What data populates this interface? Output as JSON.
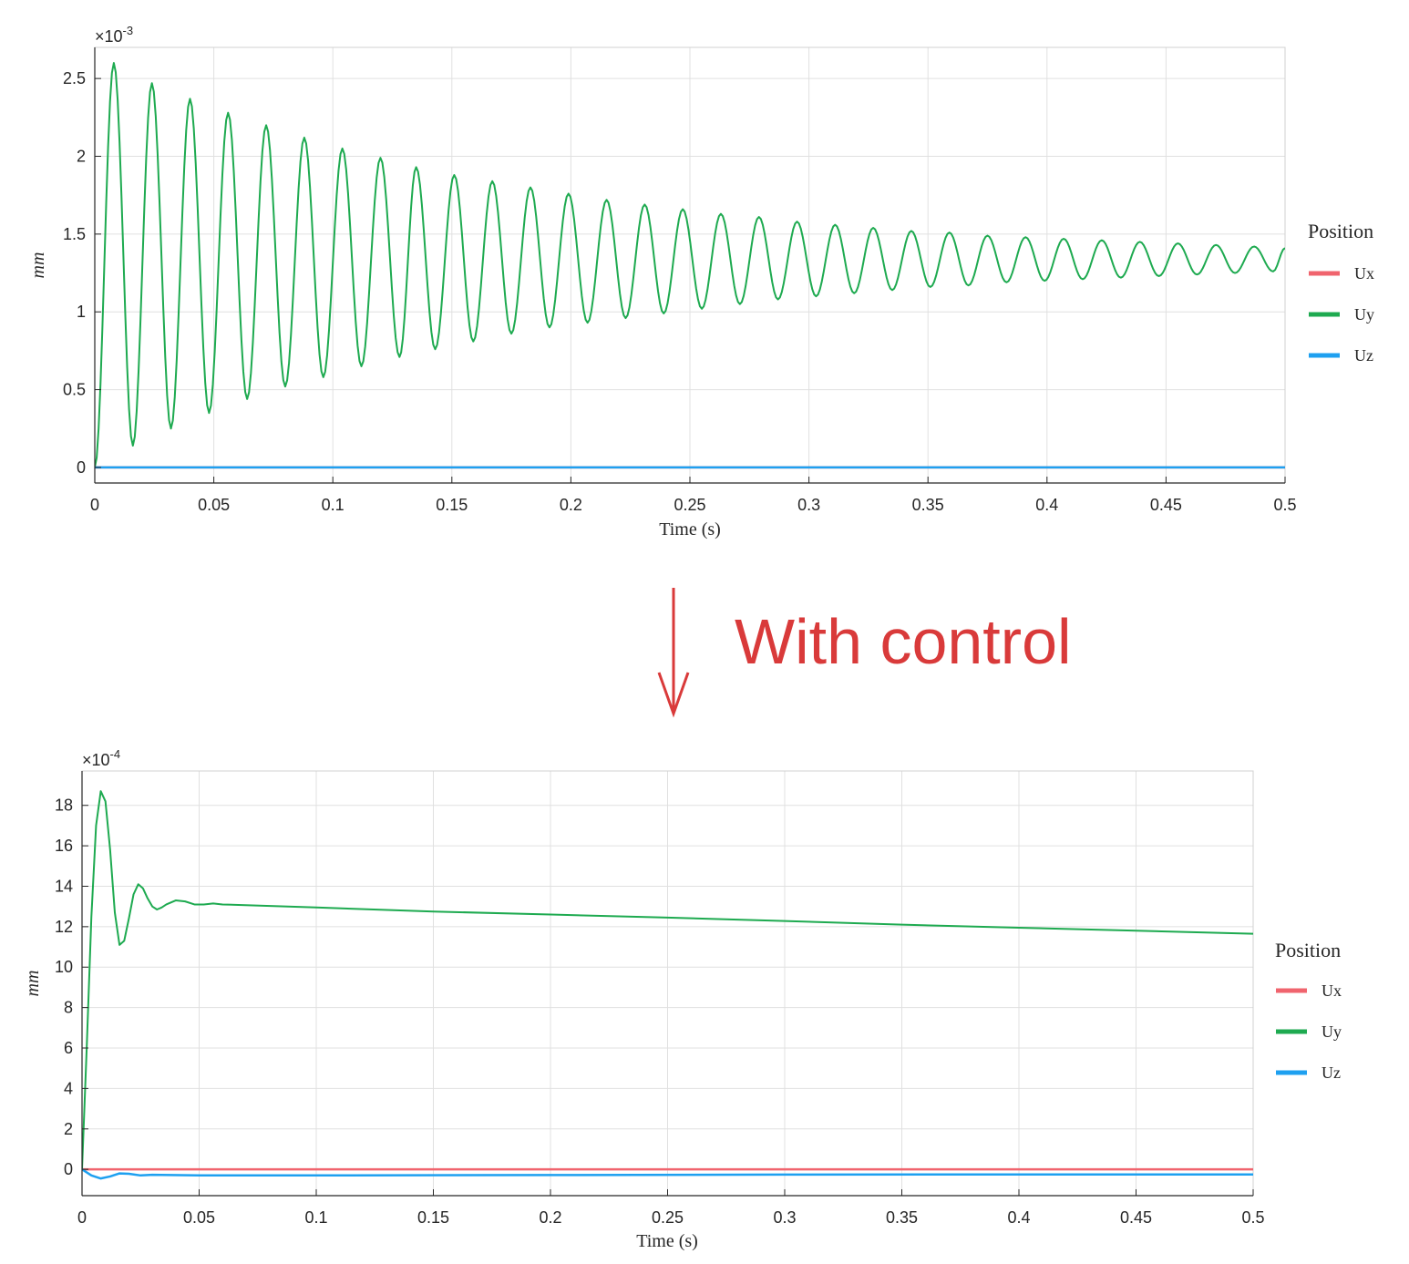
{
  "colors": {
    "Ux": "#f0646e",
    "Uy": "#1eaa50",
    "Uz": "#1ea0f0",
    "annotation": "#d93a3a",
    "grid": "#e0e0e0",
    "axis": "#262626"
  },
  "annotation": {
    "text": "With control",
    "arrow": "down-arrow"
  },
  "chart_data": [
    {
      "type": "line",
      "xlabel": "Time (s)",
      "ylabel": "mm",
      "exponent": "-3",
      "exponent_prefix": "×10",
      "xlim": [
        0,
        0.5
      ],
      "ylim": [
        -0.1,
        2.7
      ],
      "grid": true,
      "xticks": [
        0,
        0.05,
        0.1,
        0.15,
        0.2,
        0.25,
        0.3,
        0.35,
        0.4,
        0.45,
        0.5
      ],
      "yticks": [
        0,
        0.5,
        1,
        1.5,
        2,
        2.5
      ],
      "legend": {
        "title": "Position",
        "placement": "outside-right",
        "entries": [
          "Ux",
          "Uy",
          "Uz"
        ]
      },
      "series": [
        {
          "name": "Ux",
          "model": "constant",
          "value": 0
        },
        {
          "name": "Uy",
          "model": "damped-oscillation",
          "peaks": [
            [
              0.008,
              2.6
            ],
            [
              0.024,
              2.47
            ],
            [
              0.04,
              2.37
            ],
            [
              0.056,
              2.28
            ],
            [
              0.072,
              2.2
            ],
            [
              0.088,
              2.12
            ],
            [
              0.104,
              2.05
            ],
            [
              0.12,
              1.99
            ],
            [
              0.135,
              1.93
            ],
            [
              0.151,
              1.88
            ],
            [
              0.167,
              1.84
            ],
            [
              0.183,
              1.8
            ],
            [
              0.199,
              1.76
            ],
            [
              0.215,
              1.72
            ],
            [
              0.231,
              1.69
            ],
            [
              0.247,
              1.66
            ],
            [
              0.263,
              1.63
            ],
            [
              0.279,
              1.61
            ],
            [
              0.295,
              1.58
            ],
            [
              0.311,
              1.56
            ],
            [
              0.327,
              1.54
            ],
            [
              0.343,
              1.52
            ],
            [
              0.359,
              1.51
            ],
            [
              0.375,
              1.49
            ],
            [
              0.391,
              1.48
            ],
            [
              0.407,
              1.47
            ],
            [
              0.423,
              1.46
            ],
            [
              0.439,
              1.45
            ],
            [
              0.455,
              1.44
            ],
            [
              0.471,
              1.43
            ],
            [
              0.487,
              1.42
            ]
          ],
          "troughs": [
            [
              0.016,
              0.14
            ],
            [
              0.032,
              0.25
            ],
            [
              0.048,
              0.35
            ],
            [
              0.064,
              0.44
            ],
            [
              0.08,
              0.52
            ],
            [
              0.096,
              0.58
            ],
            [
              0.112,
              0.65
            ],
            [
              0.128,
              0.71
            ],
            [
              0.143,
              0.76
            ],
            [
              0.159,
              0.81
            ],
            [
              0.175,
              0.86
            ],
            [
              0.191,
              0.9
            ],
            [
              0.207,
              0.93
            ],
            [
              0.223,
              0.96
            ],
            [
              0.239,
              0.99
            ],
            [
              0.255,
              1.02
            ],
            [
              0.271,
              1.05
            ],
            [
              0.287,
              1.08
            ],
            [
              0.303,
              1.1
            ],
            [
              0.319,
              1.12
            ],
            [
              0.335,
              1.14
            ],
            [
              0.351,
              1.16
            ],
            [
              0.367,
              1.17
            ],
            [
              0.383,
              1.19
            ],
            [
              0.399,
              1.2
            ],
            [
              0.415,
              1.21
            ],
            [
              0.431,
              1.22
            ],
            [
              0.447,
              1.23
            ],
            [
              0.463,
              1.24
            ],
            [
              0.479,
              1.25
            ],
            [
              0.495,
              1.26
            ]
          ],
          "end": [
            0.5,
            1.41
          ]
        },
        {
          "name": "Uz",
          "model": "constant",
          "value": 0
        }
      ]
    },
    {
      "type": "line",
      "xlabel": "Time (s)",
      "ylabel": "mm",
      "exponent": "-4",
      "exponent_prefix": "×10",
      "xlim": [
        0,
        0.5
      ],
      "ylim": [
        -1.3,
        19.7
      ],
      "grid": true,
      "xticks": [
        0,
        0.05,
        0.1,
        0.15,
        0.2,
        0.25,
        0.3,
        0.35,
        0.4,
        0.45,
        0.5
      ],
      "yticks": [
        0,
        2,
        4,
        6,
        8,
        10,
        12,
        14,
        16,
        18
      ],
      "legend": {
        "title": "Position",
        "placement": "outside-right",
        "entries": [
          "Ux",
          "Uy",
          "Uz"
        ]
      },
      "series": [
        {
          "name": "Ux",
          "points": [
            [
              0,
              0
            ],
            [
              0.5,
              0
            ]
          ]
        },
        {
          "name": "Uy",
          "points": [
            [
              0,
              0
            ],
            [
              0.002,
              6
            ],
            [
              0.004,
              12.5
            ],
            [
              0.006,
              17
            ],
            [
              0.008,
              18.7
            ],
            [
              0.01,
              18.2
            ],
            [
              0.012,
              15.8
            ],
            [
              0.014,
              12.7
            ],
            [
              0.016,
              11.1
            ],
            [
              0.018,
              11.3
            ],
            [
              0.02,
              12.4
            ],
            [
              0.022,
              13.6
            ],
            [
              0.024,
              14.1
            ],
            [
              0.026,
              13.9
            ],
            [
              0.028,
              13.4
            ],
            [
              0.03,
              13.0
            ],
            [
              0.032,
              12.85
            ],
            [
              0.034,
              12.95
            ],
            [
              0.036,
              13.1
            ],
            [
              0.04,
              13.3
            ],
            [
              0.044,
              13.25
            ],
            [
              0.048,
              13.1
            ],
            [
              0.052,
              13.1
            ],
            [
              0.056,
              13.15
            ],
            [
              0.06,
              13.1
            ],
            [
              0.1,
              12.95
            ],
            [
              0.15,
              12.75
            ],
            [
              0.2,
              12.6
            ],
            [
              0.25,
              12.45
            ],
            [
              0.3,
              12.28
            ],
            [
              0.35,
              12.1
            ],
            [
              0.4,
              11.95
            ],
            [
              0.45,
              11.8
            ],
            [
              0.5,
              11.65
            ]
          ]
        },
        {
          "name": "Uz",
          "points": [
            [
              0,
              0
            ],
            [
              0.004,
              -0.3
            ],
            [
              0.008,
              -0.45
            ],
            [
              0.012,
              -0.35
            ],
            [
              0.016,
              -0.2
            ],
            [
              0.02,
              -0.22
            ],
            [
              0.025,
              -0.3
            ],
            [
              0.03,
              -0.27
            ],
            [
              0.05,
              -0.3
            ],
            [
              0.1,
              -0.3
            ],
            [
              0.2,
              -0.28
            ],
            [
              0.3,
              -0.26
            ],
            [
              0.4,
              -0.25
            ],
            [
              0.5,
              -0.25
            ]
          ]
        }
      ]
    }
  ]
}
